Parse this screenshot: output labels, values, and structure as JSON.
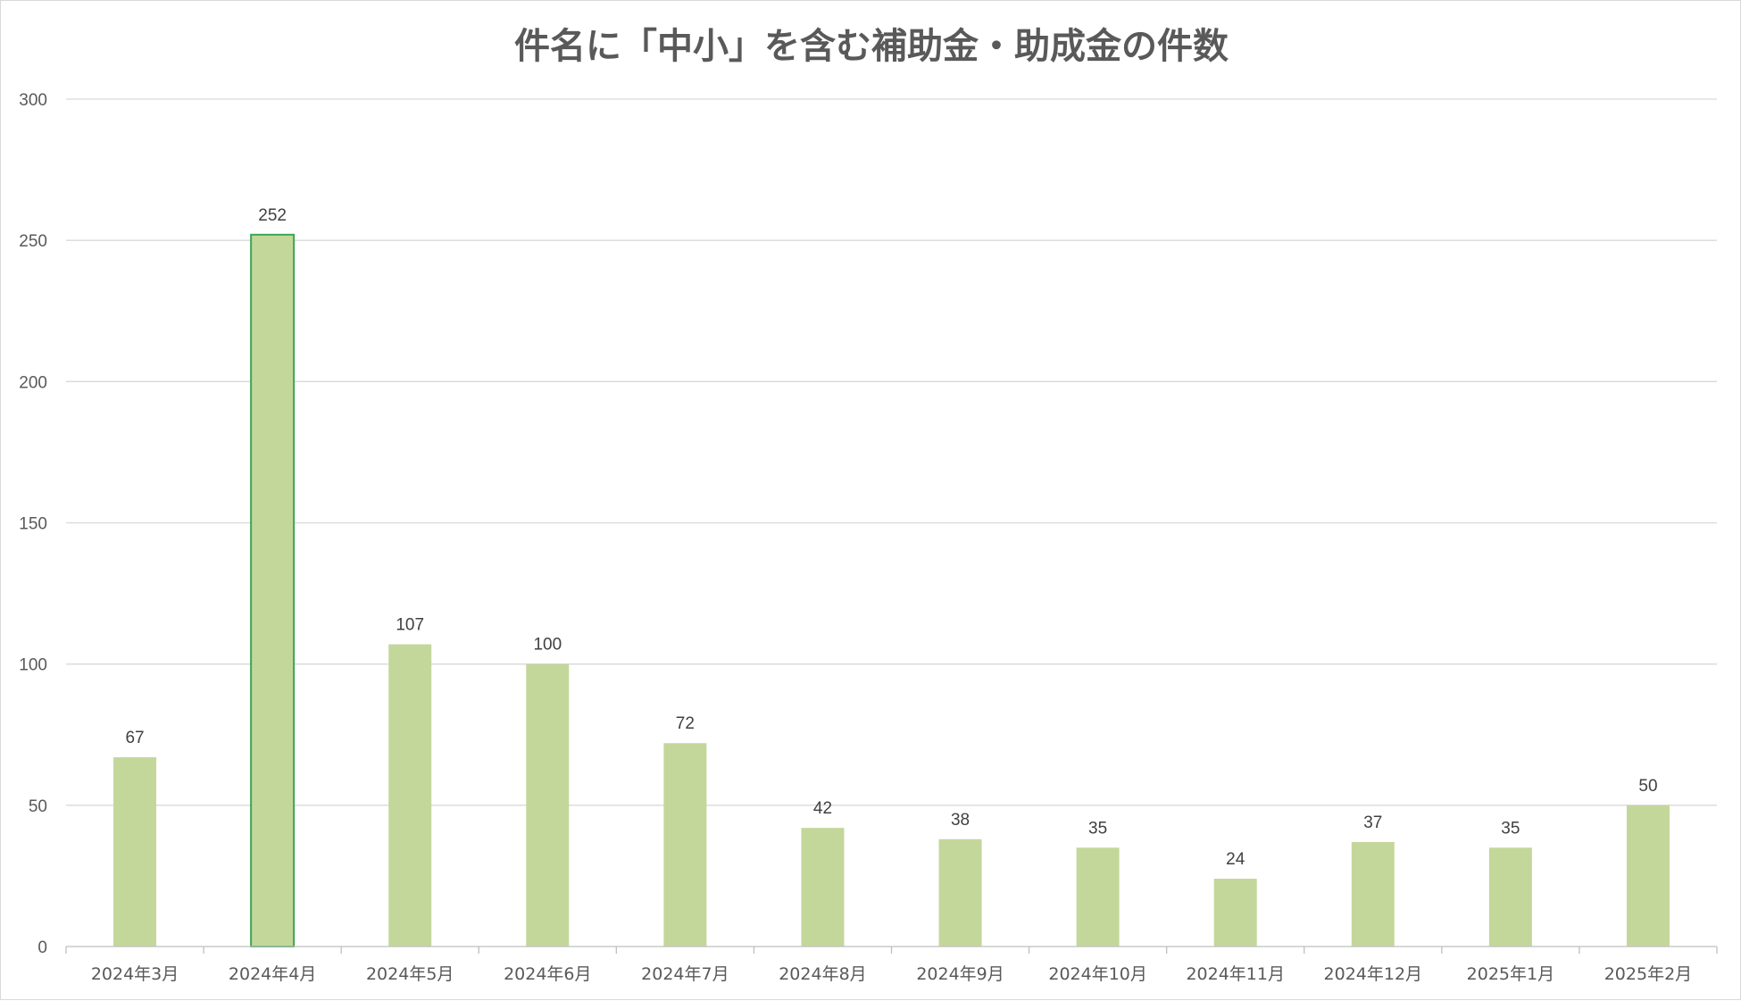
{
  "chart_data": {
    "type": "bar",
    "title": "件名に「中小」を含む補助金・助成金の件数",
    "xlabel": "",
    "ylabel": "",
    "categories": [
      "2024年3月",
      "2024年4月",
      "2024年5月",
      "2024年6月",
      "2024年7月",
      "2024年8月",
      "2024年9月",
      "2024年10月",
      "2024年11月",
      "2024年12月",
      "2025年1月",
      "2025年2月"
    ],
    "values": [
      67,
      252,
      107,
      100,
      72,
      42,
      38,
      35,
      24,
      37,
      35,
      50
    ],
    "data_labels": [
      "67",
      "252",
      "107",
      "100",
      "72",
      "42",
      "38",
      "35",
      "24",
      "37",
      "35",
      "50"
    ],
    "ylim": [
      0,
      300
    ],
    "yticks": [
      0,
      50,
      100,
      150,
      200,
      250,
      300
    ],
    "ytick_labels": [
      "0",
      "50",
      "100",
      "150",
      "200",
      "250",
      "300"
    ],
    "grid": true,
    "legend": "none",
    "highlighted_index": 1,
    "colors": {
      "bar_fill": "#c4d79b",
      "highlight_border": "#3aa655",
      "gridline": "#d9d9d9",
      "axis": "#bfbfbf",
      "title_text": "#595959",
      "tick_text": "#595959",
      "data_label_text": "#404040"
    }
  }
}
